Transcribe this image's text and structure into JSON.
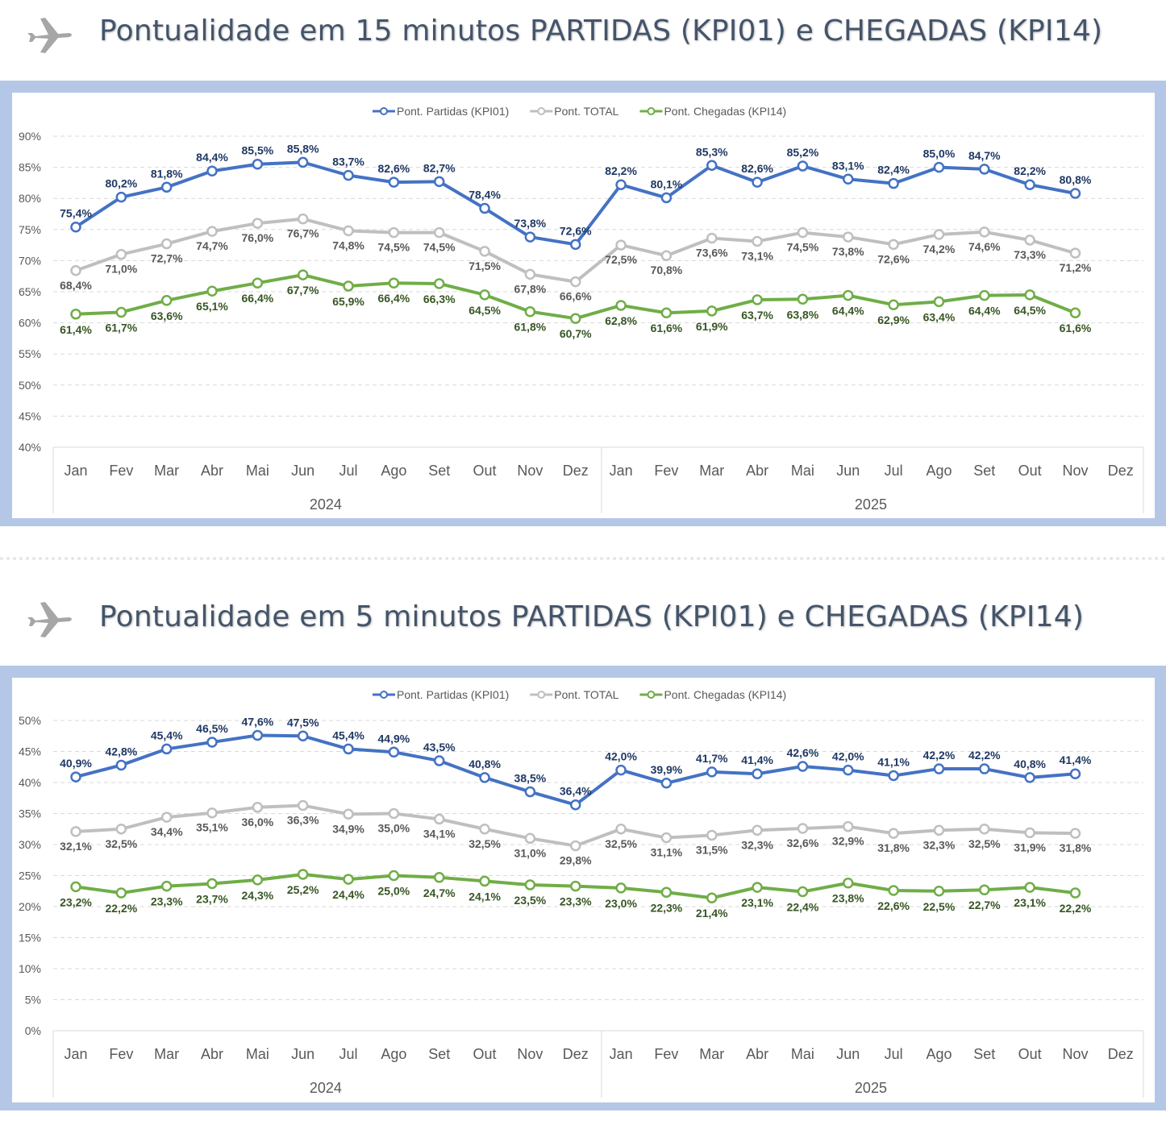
{
  "colors": {
    "partidas": "#4472C4",
    "total": "#BFBFBF",
    "chegadas": "#70AD47",
    "frame": "#B4C7E7",
    "title": "#44546A"
  },
  "icons": {
    "header": "airplane-icon"
  },
  "chart_data": [
    {
      "type": "line",
      "title": "Pontualidade em 15 minutos PARTIDAS (KPI01) e CHEGADAS (KPI14)",
      "categories": [
        "Jan",
        "Fev",
        "Mar",
        "Abr",
        "Mai",
        "Jun",
        "Jul",
        "Ago",
        "Set",
        "Out",
        "Nov",
        "Dez",
        "Jan",
        "Fev",
        "Mar",
        "Abr",
        "Mai",
        "Jun",
        "Jul",
        "Ago",
        "Set",
        "Out",
        "Nov",
        "Dez"
      ],
      "groups": [
        "2024",
        "2025"
      ],
      "ylim": [
        40,
        90
      ],
      "yticks": [
        "40%",
        "45%",
        "50%",
        "55%",
        "60%",
        "65%",
        "70%",
        "75%",
        "80%",
        "85%",
        "90%"
      ],
      "grid": true,
      "legend": "top-center",
      "series": [
        {
          "name": "Pont. Partidas (KPI01)",
          "key": "partidas",
          "values": [
            75.4,
            80.2,
            81.8,
            84.4,
            85.5,
            85.8,
            83.7,
            82.6,
            82.7,
            78.4,
            73.8,
            72.6,
            82.2,
            80.1,
            85.3,
            82.6,
            85.2,
            83.1,
            82.4,
            85.0,
            84.7,
            82.2,
            80.8,
            null
          ],
          "labels": [
            "75,4%",
            "80,2%",
            "81,8%",
            "84,4%",
            "85,5%",
            "85,8%",
            "83,7%",
            "82,6%",
            "82,7%",
            "78,4%",
            "73,8%",
            "72,6%",
            "82,2%",
            "80,1%",
            "85,3%",
            "82,6%",
            "85,2%",
            "83,1%",
            "82,4%",
            "85,0%",
            "84,7%",
            "82,2%",
            "80,8%",
            null
          ]
        },
        {
          "name": "Pont. TOTAL",
          "key": "total",
          "values": [
            68.4,
            71.0,
            72.7,
            74.7,
            76.0,
            76.7,
            74.8,
            74.5,
            74.5,
            71.5,
            67.8,
            66.6,
            72.5,
            70.8,
            73.6,
            73.1,
            74.5,
            73.8,
            72.6,
            74.2,
            74.6,
            73.3,
            71.2,
            null
          ],
          "labels": [
            "68,4%",
            "71,0%",
            "72,7%",
            "74,7%",
            "76,0%",
            "76,7%",
            "74,8%",
            "74,5%",
            "74,5%",
            "71,5%",
            "67,8%",
            "66,6%",
            "72,5%",
            "70,8%",
            "73,6%",
            "73,1%",
            "74,5%",
            "73,8%",
            "72,6%",
            "74,2%",
            "74,6%",
            "73,3%",
            "71,2%",
            null
          ]
        },
        {
          "name": "Pont. Chegadas (KPI14)",
          "key": "chegadas",
          "values": [
            61.4,
            61.7,
            63.6,
            65.1,
            66.4,
            67.7,
            65.9,
            66.4,
            66.3,
            64.5,
            61.8,
            60.7,
            62.8,
            61.6,
            61.9,
            63.7,
            63.8,
            64.4,
            62.9,
            63.4,
            64.4,
            64.5,
            61.6,
            null
          ],
          "labels": [
            "61,4%",
            "61,7%",
            "63,6%",
            "65,1%",
            "66,4%",
            "67,7%",
            "65,9%",
            "66,4%",
            "66,3%",
            "64,5%",
            "61,8%",
            "60,7%",
            "62,8%",
            "61,6%",
            "61,9%",
            "63,7%",
            "63,8%",
            "64,4%",
            "62,9%",
            "63,4%",
            "64,4%",
            "64,5%",
            "61,6%",
            null
          ]
        }
      ]
    },
    {
      "type": "line",
      "title": "Pontualidade em 5 minutos PARTIDAS (KPI01) e CHEGADAS (KPI14)",
      "categories": [
        "Jan",
        "Fev",
        "Mar",
        "Abr",
        "Mai",
        "Jun",
        "Jul",
        "Ago",
        "Set",
        "Out",
        "Nov",
        "Dez",
        "Jan",
        "Fev",
        "Mar",
        "Abr",
        "Mai",
        "Jun",
        "Jul",
        "Ago",
        "Set",
        "Out",
        "Nov",
        "Dez"
      ],
      "groups": [
        "2024",
        "2025"
      ],
      "ylim": [
        0,
        50
      ],
      "yticks": [
        "0%",
        "5%",
        "10%",
        "15%",
        "20%",
        "25%",
        "30%",
        "35%",
        "40%",
        "45%",
        "50%"
      ],
      "grid": true,
      "legend": "top-center",
      "series": [
        {
          "name": "Pont. Partidas (KPI01)",
          "key": "partidas",
          "values": [
            40.9,
            42.8,
            45.4,
            46.5,
            47.6,
            47.5,
            45.4,
            44.9,
            43.5,
            40.8,
            38.5,
            36.4,
            42.0,
            39.9,
            41.7,
            41.4,
            42.6,
            42.0,
            41.1,
            42.2,
            42.2,
            40.8,
            41.4,
            null
          ],
          "labels": [
            "40,9%",
            "42,8%",
            "45,4%",
            "46,5%",
            "47,6%",
            "47,5%",
            "45,4%",
            "44,9%",
            "43,5%",
            "40,8%",
            "38,5%",
            "36,4%",
            "42,0%",
            "39,9%",
            "41,7%",
            "41,4%",
            "42,6%",
            "42,0%",
            "41,1%",
            "42,2%",
            "42,2%",
            "40,8%",
            "41,4%",
            null
          ]
        },
        {
          "name": "Pont. TOTAL",
          "key": "total",
          "values": [
            32.1,
            32.5,
            34.4,
            35.1,
            36.0,
            36.3,
            34.9,
            35.0,
            34.1,
            32.5,
            31.0,
            29.8,
            32.5,
            31.1,
            31.5,
            32.3,
            32.6,
            32.9,
            31.8,
            32.3,
            32.5,
            31.9,
            31.8,
            null
          ],
          "labels": [
            "32,1%",
            "32,5%",
            "34,4%",
            "35,1%",
            "36,0%",
            "36,3%",
            "34,9%",
            "35,0%",
            "34,1%",
            "32,5%",
            "31,0%",
            "29,8%",
            "32,5%",
            "31,1%",
            "31,5%",
            "32,3%",
            "32,6%",
            "32,9%",
            "31,8%",
            "32,3%",
            "32,5%",
            "31,9%",
            "31,8%",
            null
          ]
        },
        {
          "name": "Pont. Chegadas (KPI14)",
          "key": "chegadas",
          "values": [
            23.2,
            22.2,
            23.3,
            23.7,
            24.3,
            25.2,
            24.4,
            25.0,
            24.7,
            24.1,
            23.5,
            23.3,
            23.0,
            22.3,
            21.4,
            23.1,
            22.4,
            23.8,
            22.6,
            22.5,
            22.7,
            23.1,
            22.2,
            null
          ],
          "labels": [
            "23,2%",
            "22,2%",
            "23,3%",
            "23,7%",
            "24,3%",
            "25,2%",
            "24,4%",
            "25,0%",
            "24,7%",
            "24,1%",
            "23,5%",
            "23,3%",
            "23,0%",
            "22,3%",
            "21,4%",
            "23,1%",
            "22,4%",
            "23,8%",
            "22,6%",
            "22,5%",
            "22,7%",
            "23,1%",
            "22,2%",
            null
          ]
        }
      ]
    }
  ]
}
